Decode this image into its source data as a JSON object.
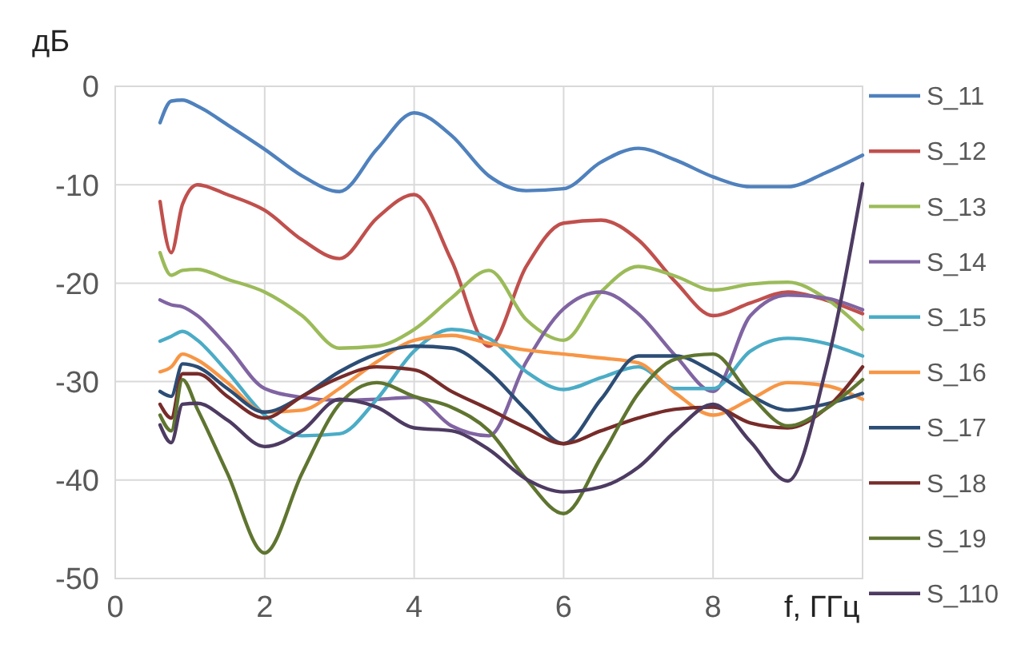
{
  "chart_data": {
    "type": "line",
    "xlabel": "f, ГГц",
    "ylabel": "дБ",
    "x": [
      0.6,
      0.75,
      0.9,
      1.1,
      1.5,
      2,
      2.5,
      3,
      3.5,
      4,
      4.5,
      5,
      5.5,
      6,
      6.5,
      7,
      7.5,
      8,
      8.5,
      9,
      9.5,
      10
    ],
    "xlim": [
      0,
      10
    ],
    "xticks": [
      0,
      2,
      4,
      6,
      8
    ],
    "ylim": [
      -50,
      0
    ],
    "yticks": [
      0,
      -10,
      -20,
      -30,
      -40,
      -50
    ],
    "grid": true,
    "legend": "right",
    "marker": "none",
    "line_style": "solid",
    "series": [
      {
        "name": "S_11",
        "color": "#4f81bd",
        "values": [
          -3.7,
          -1.5,
          -1.4,
          -2.0,
          -3.9,
          -6.4,
          -9.1,
          -10.7,
          -6.4,
          -2.7,
          -5.0,
          -9.1,
          -10.6,
          -10.4,
          -7.7,
          -6.3,
          -7.5,
          -9.2,
          -10.2,
          -10.2,
          -8.8,
          -7.0
        ]
      },
      {
        "name": "S_12",
        "color": "#c0504d",
        "values": [
          -11.7,
          -16.9,
          -12.0,
          -10.0,
          -11.0,
          -12.6,
          -15.6,
          -17.5,
          -13.4,
          -11.0,
          -17.7,
          -26.4,
          -18.3,
          -13.9,
          -13.6,
          -15.6,
          -19.9,
          -23.3,
          -22.0,
          -20.9,
          -21.7,
          -23.1
        ]
      },
      {
        "name": "S_13",
        "color": "#9bbb59",
        "values": [
          -16.9,
          -19.2,
          -18.7,
          -18.6,
          -19.6,
          -20.9,
          -23.3,
          -26.6,
          -26.4,
          -24.7,
          -21.5,
          -18.7,
          -23.7,
          -25.8,
          -20.9,
          -18.3,
          -19.3,
          -20.7,
          -20.1,
          -19.9,
          -21.5,
          -24.7
        ]
      },
      {
        "name": "S_14",
        "color": "#8064a2",
        "values": [
          -21.7,
          -22.2,
          -22.4,
          -23.3,
          -26.4,
          -30.7,
          -31.6,
          -31.9,
          -31.8,
          -31.6,
          -34.5,
          -35.5,
          -28.0,
          -22.6,
          -20.9,
          -23.1,
          -27.4,
          -31.0,
          -23.3,
          -21.2,
          -21.5,
          -22.7
        ]
      },
      {
        "name": "S_15",
        "color": "#4bacc6",
        "values": [
          -25.9,
          -25.4,
          -24.9,
          -25.8,
          -29.0,
          -33.4,
          -35.5,
          -35.3,
          -31.8,
          -26.9,
          -24.7,
          -25.6,
          -29.0,
          -30.8,
          -29.6,
          -28.5,
          -30.7,
          -30.7,
          -26.9,
          -25.6,
          -26.1,
          -27.4
        ]
      },
      {
        "name": "S_16",
        "color": "#f79646",
        "values": [
          -29.0,
          -28.5,
          -27.2,
          -27.8,
          -30.1,
          -33.1,
          -32.9,
          -30.7,
          -28.0,
          -25.8,
          -25.3,
          -26.1,
          -26.8,
          -27.2,
          -27.6,
          -28.1,
          -31.2,
          -33.4,
          -31.8,
          -30.1,
          -30.4,
          -31.8
        ]
      },
      {
        "name": "S_17",
        "color": "#2c4d75",
        "values": [
          -31.0,
          -31.5,
          -28.2,
          -28.5,
          -30.7,
          -33.1,
          -31.5,
          -29.0,
          -27.2,
          -26.4,
          -26.6,
          -29.0,
          -32.9,
          -36.3,
          -31.8,
          -27.4,
          -27.4,
          -29.0,
          -31.4,
          -32.9,
          -32.3,
          -31.2
        ]
      },
      {
        "name": "S_18",
        "color": "#772c2a",
        "values": [
          -32.3,
          -33.7,
          -29.2,
          -29.2,
          -31.5,
          -33.7,
          -31.5,
          -29.6,
          -28.5,
          -28.8,
          -31.0,
          -32.8,
          -34.7,
          -36.3,
          -35.0,
          -33.7,
          -32.8,
          -32.6,
          -34.2,
          -34.7,
          -32.8,
          -28.5
        ]
      },
      {
        "name": "S_19",
        "color": "#5f7530",
        "values": [
          -33.4,
          -35.0,
          -29.8,
          -32.8,
          -39.3,
          -47.4,
          -39.3,
          -32.3,
          -30.1,
          -31.5,
          -32.6,
          -35.0,
          -39.9,
          -43.4,
          -37.7,
          -31.2,
          -27.7,
          -27.2,
          -31.4,
          -34.5,
          -32.8,
          -29.8
        ]
      },
      {
        "name": "S_110",
        "color": "#4d3b62",
        "values": [
          -34.4,
          -36.2,
          -32.3,
          -32.2,
          -33.9,
          -36.6,
          -35.0,
          -31.8,
          -32.6,
          -34.7,
          -35.0,
          -36.9,
          -39.9,
          -41.2,
          -40.7,
          -38.7,
          -35.0,
          -32.3,
          -36.1,
          -40.1,
          -29.0,
          -9.9
        ]
      }
    ]
  }
}
